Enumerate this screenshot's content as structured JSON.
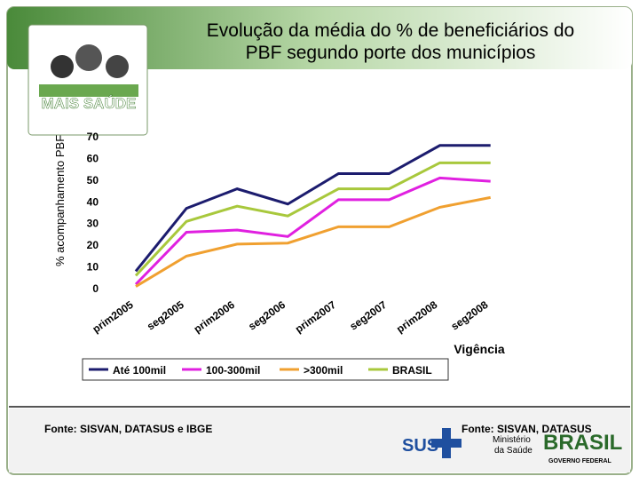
{
  "slide": {
    "logo_text": "MAIS SAÚDE",
    "source_left": "Fonte: SISVAN, DATASUS e IBGE",
    "source_right": "Fonte: SISVAN, DATASUS",
    "sus": "SUS",
    "ministry": [
      "Ministério",
      "da Saúde"
    ],
    "brasil": "BRASIL",
    "gov": "GOVERNO FEDERAL"
  },
  "chart_data": {
    "type": "line",
    "title": [
      "Evolução da média do % de beneficiários do",
      "PBF segundo porte dos municípios"
    ],
    "y_label": "% acompanhamento PBF",
    "x_label": "Vigência",
    "categories": [
      "prim2005",
      "seg2005",
      "prim2006",
      "seg2006",
      "prim2007",
      "seg2007",
      "prim2008",
      "seg2008"
    ],
    "series": [
      {
        "name": "Até 100mil",
        "color": "#1c1c6e",
        "values": [
          8,
          37,
          46,
          39,
          53,
          53,
          66,
          66
        ]
      },
      {
        "name": "100-300mil",
        "color": "#e020e0",
        "values": [
          2,
          26,
          27,
          24,
          41,
          41,
          51,
          49.5
        ]
      },
      {
        "name": ">300mil",
        "color": "#f0a030",
        "values": [
          1,
          15,
          20.5,
          21,
          28.5,
          28.5,
          37.5,
          42
        ]
      },
      {
        "name": "BRASIL",
        "color": "#a8c83c",
        "values": [
          6,
          31,
          38,
          33.5,
          46,
          46,
          58,
          58
        ]
      }
    ],
    "ylim": [
      0,
      70
    ],
    "yticks": [
      0,
      10,
      20,
      30,
      40,
      50,
      60,
      70
    ],
    "grid": false
  }
}
